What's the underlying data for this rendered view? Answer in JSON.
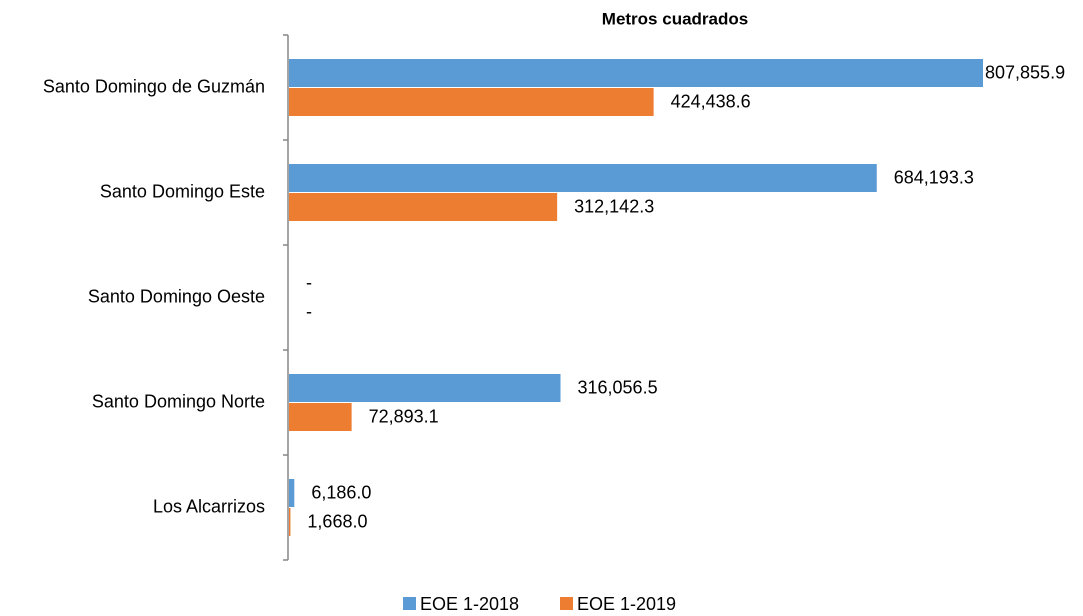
{
  "chart_data": {
    "type": "hbar",
    "title": "Metros cuadrados",
    "categories": [
      "Santo Domingo de Guzmán",
      "Santo Domingo Este",
      "Santo Domingo Oeste",
      "Santo Domingo Norte",
      "Los Alcarrizos"
    ],
    "series": [
      {
        "name": "EOE 1-2018",
        "color": "#5b9bd5",
        "values": [
          807855.9,
          684193.3,
          0,
          316056.5,
          6186.0
        ],
        "value_labels": [
          "807,855.9",
          "684,193.3",
          "-",
          "316,056.5",
          "6,186.0"
        ]
      },
      {
        "name": "EOE 1-2019",
        "color": "#ed7d31",
        "values": [
          424438.6,
          312142.3,
          0,
          72893.1,
          1668.0
        ],
        "value_labels": [
          "424,438.6",
          "312,142.3",
          "-",
          "72,893.1",
          "1,668.0"
        ]
      }
    ],
    "legend": "bottom"
  }
}
